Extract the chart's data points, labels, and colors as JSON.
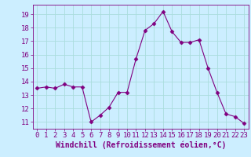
{
  "x": [
    0,
    1,
    2,
    3,
    4,
    5,
    6,
    7,
    8,
    9,
    10,
    11,
    12,
    13,
    14,
    15,
    16,
    17,
    18,
    19,
    20,
    21,
    22,
    23
  ],
  "y": [
    13.5,
    13.6,
    13.5,
    13.8,
    13.6,
    13.6,
    11.0,
    11.5,
    12.1,
    13.2,
    13.2,
    15.7,
    17.8,
    18.3,
    19.2,
    17.7,
    16.9,
    16.9,
    17.1,
    15.0,
    13.2,
    11.6,
    11.4,
    10.9
  ],
  "line_color": "#800080",
  "marker": "D",
  "marker_size": 2.5,
  "bg_color": "#cceeff",
  "grid_color": "#aadddd",
  "xlabel": "Windchill (Refroidissement éolien,°C)",
  "xlabel_fontsize": 7,
  "tick_fontsize": 6.5,
  "ylim": [
    10.5,
    19.7
  ],
  "xlim": [
    -0.5,
    23.5
  ],
  "yticks": [
    11,
    12,
    13,
    14,
    15,
    16,
    17,
    18,
    19
  ],
  "xticks": [
    0,
    1,
    2,
    3,
    4,
    5,
    6,
    7,
    8,
    9,
    10,
    11,
    12,
    13,
    14,
    15,
    16,
    17,
    18,
    19,
    20,
    21,
    22,
    23
  ]
}
